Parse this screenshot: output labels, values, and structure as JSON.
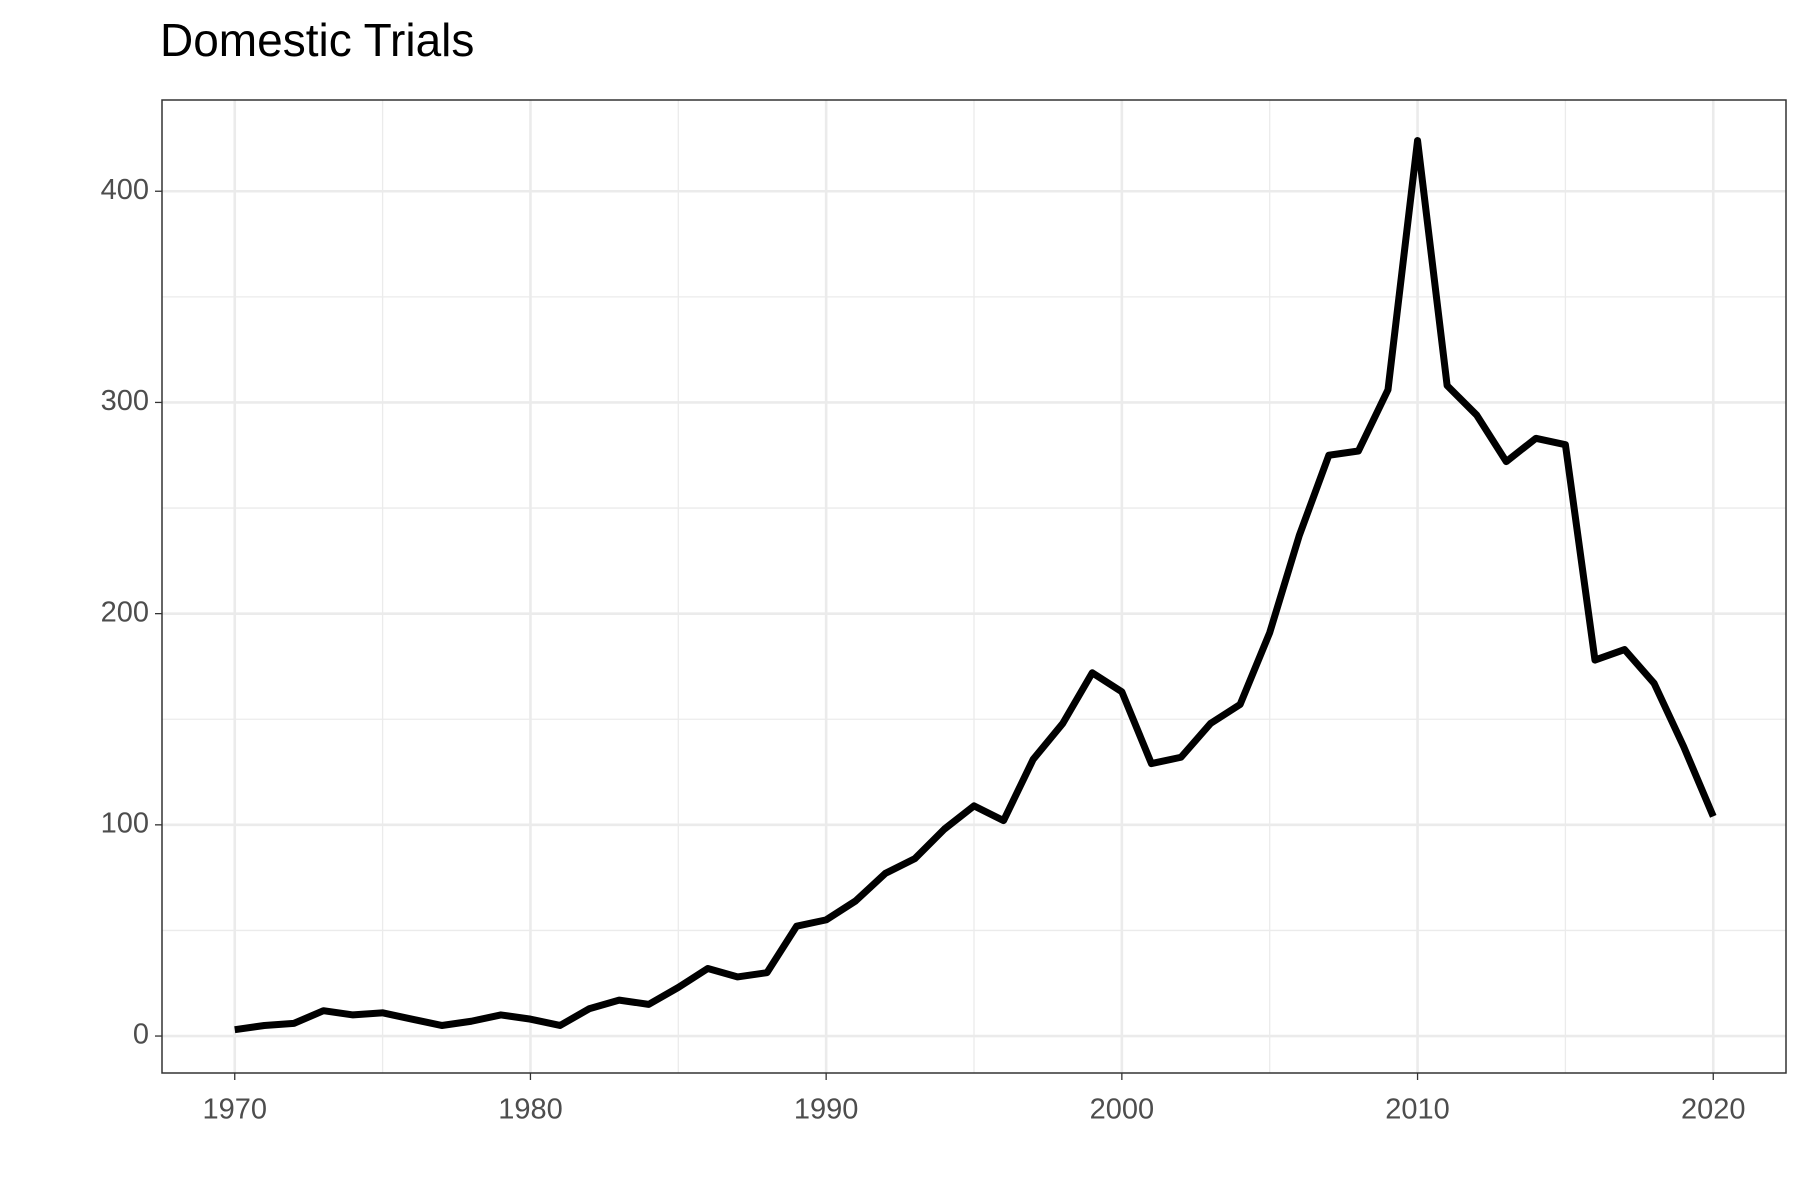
{
  "chart_data": {
    "type": "line",
    "title": "Domestic Trials",
    "x": [
      1970,
      1971,
      1972,
      1973,
      1974,
      1975,
      1976,
      1977,
      1978,
      1979,
      1980,
      1981,
      1982,
      1983,
      1984,
      1985,
      1986,
      1987,
      1988,
      1989,
      1990,
      1991,
      1992,
      1993,
      1994,
      1995,
      1996,
      1997,
      1998,
      1999,
      2000,
      2001,
      2002,
      2003,
      2004,
      2005,
      2006,
      2007,
      2008,
      2009,
      2010,
      2011,
      2012,
      2013,
      2014,
      2015,
      2016,
      2017,
      2018,
      2019,
      2020
    ],
    "series": [
      {
        "color": "#000000",
        "values": [
          3,
          5,
          6,
          12,
          10,
          11,
          8,
          5,
          7,
          10,
          8,
          5,
          13,
          17,
          15,
          23,
          32,
          28,
          30,
          52,
          55,
          64,
          77,
          84,
          98,
          109,
          102,
          131,
          148,
          172,
          163,
          129,
          132,
          148,
          157,
          191,
          237,
          275,
          277,
          306,
          424,
          308,
          294,
          272,
          283,
          280,
          178,
          183,
          167,
          137,
          104
        ]
      }
    ],
    "xlim": [
      1967.54,
      2022.46
    ],
    "xticks": [
      1970,
      1980,
      1990,
      2000,
      2010,
      2020
    ],
    "ylim": [
      -17.5,
      443.2
    ],
    "yticks": [
      0,
      100,
      200,
      300,
      400
    ],
    "grid": true,
    "minor_grid": true
  }
}
